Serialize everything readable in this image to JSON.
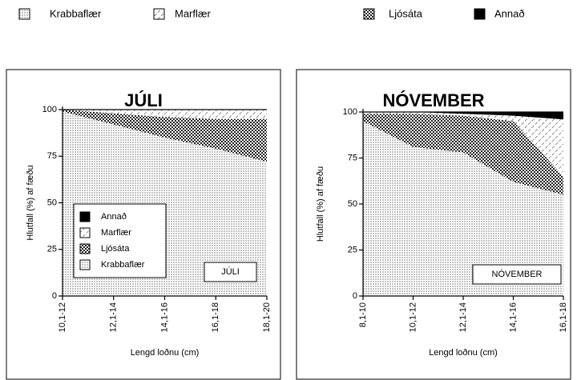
{
  "chart_data": [
    {
      "type": "stacked_area",
      "title": "JÚLI",
      "annotation": "JÚLI",
      "x_label": "Lengd loðnu (cm)",
      "y_label": "Hlutfall  (%) af fæðu",
      "categories": [
        "10,1-12",
        "12,1-14",
        "14,1-16",
        "16,1-18",
        "18,1-20"
      ],
      "ylim": [
        0,
        100
      ],
      "yticks": [
        0,
        25,
        50,
        75,
        100
      ],
      "legend": true,
      "series": [
        {
          "name": "Krabbaflær",
          "pattern": "dots",
          "values": [
            99,
            92,
            85,
            79,
            72
          ]
        },
        {
          "name": "Ljósáta",
          "pattern": "checker",
          "values": [
            1,
            6,
            11,
            16,
            23
          ]
        },
        {
          "name": "Marflær",
          "pattern": "hatch",
          "values": [
            0,
            2,
            4,
            5,
            5
          ]
        },
        {
          "name": "Annað",
          "pattern": "solid",
          "values": [
            0,
            0,
            0,
            0,
            0
          ]
        }
      ]
    },
    {
      "type": "stacked_area",
      "title": "NÓVEMBER",
      "annotation": "NÓVEMBER",
      "x_label": "Lengd loðnu (cm)",
      "y_label": "Hlutfall  (%) af fæðu",
      "categories": [
        "8,1-10",
        "10,1-12",
        "12,1-14",
        "14,1-16",
        "16,1-18"
      ],
      "ylim": [
        0,
        100
      ],
      "yticks": [
        0,
        25,
        50,
        75,
        100
      ],
      "legend": false,
      "series": [
        {
          "name": "Krabbaflær",
          "pattern": "dots",
          "values": [
            95,
            81,
            78,
            62,
            55
          ]
        },
        {
          "name": "Ljósáta",
          "pattern": "checker",
          "values": [
            4,
            18,
            20,
            33,
            10
          ]
        },
        {
          "name": "Marflær",
          "pattern": "hatch",
          "values": [
            1,
            1,
            1,
            3,
            31
          ]
        },
        {
          "name": "Annað",
          "pattern": "solid",
          "values": [
            0,
            0,
            1,
            2,
            4
          ]
        }
      ]
    }
  ]
}
